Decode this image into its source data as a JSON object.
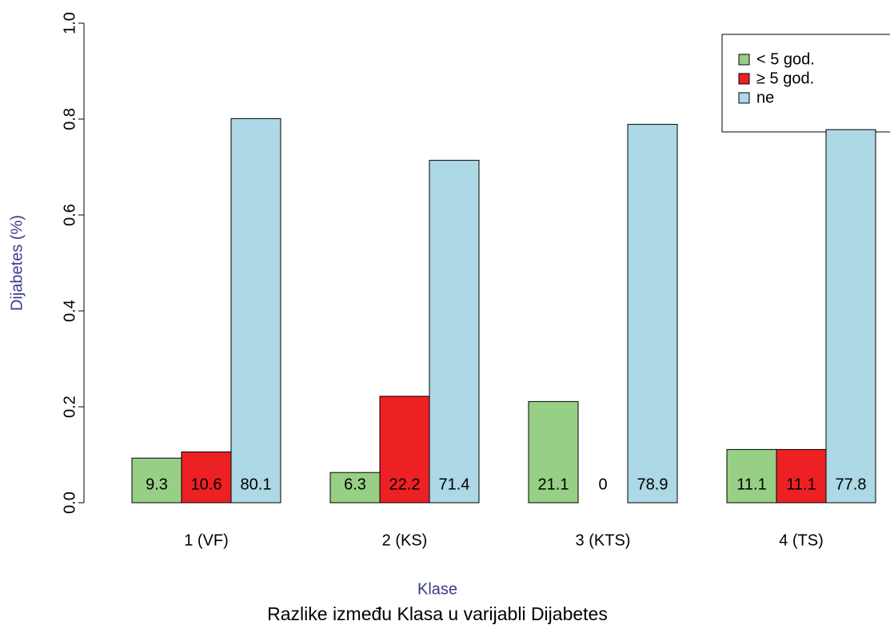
{
  "chart_data": {
    "type": "bar",
    "title": "Razlike između Klasa u varijabli Dijabetes",
    "x_label": "Klase",
    "y_label": "Dijabetes (%)",
    "categories": [
      "1 (VF)",
      "2 (KS)",
      "3 (KTS)",
      "4 (TS)"
    ],
    "series": [
      {
        "name": "< 5 god.",
        "color": "#98cf86",
        "values": [
          0.093,
          0.063,
          0.211,
          0.111
        ],
        "value_labels": [
          "9.3",
          "6.3",
          "21.1",
          "11.1"
        ]
      },
      {
        "name": "≥ 5 god.",
        "color": "#ed2024",
        "values": [
          0.106,
          0.222,
          0,
          0.111
        ],
        "value_labels": [
          "10.6",
          "22.2",
          "0",
          "11.1"
        ]
      },
      {
        "name": "ne",
        "color": "#add8e6",
        "values": [
          0.801,
          0.714,
          0.789,
          0.778
        ],
        "value_labels": [
          "80.1",
          "71.4",
          "78.9",
          "77.8"
        ]
      }
    ],
    "ylim": [
      0,
      1
    ],
    "yticks": [
      {
        "value": 0,
        "label": "0.0"
      },
      0.2,
      0.4,
      0.6,
      0.8,
      {
        "value": 1,
        "label": "1.0"
      }
    ],
    "legend": "top-right"
  }
}
